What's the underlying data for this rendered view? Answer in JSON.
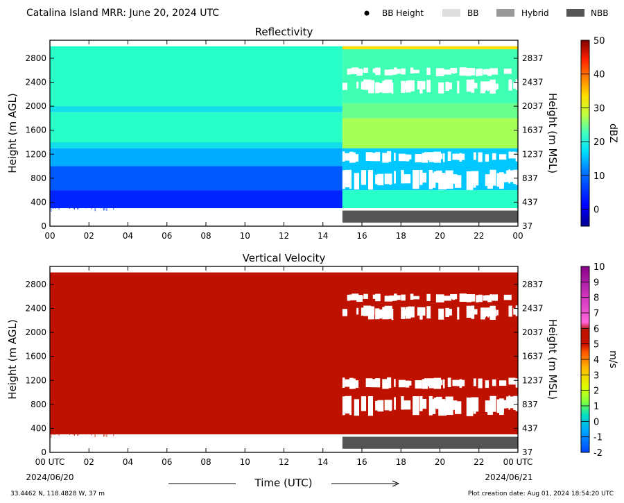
{
  "header": {
    "title": "Catalina Island MRR:  June 20, 2024 UTC",
    "legend": [
      {
        "label": "BB Height",
        "symbol": "dot",
        "color": "#000000"
      },
      {
        "label": "BB",
        "symbol": "box",
        "color": "#dddddd"
      },
      {
        "label": "Hybrid",
        "symbol": "box",
        "color": "#999999"
      },
      {
        "label": "NBB",
        "symbol": "box",
        "color": "#555555"
      }
    ]
  },
  "chart_data": [
    {
      "type": "heatmap",
      "title": "Reflectivity",
      "ylabel": "Height (m AGL)",
      "ylabel_right": "Height (m MSL)",
      "x_ticks": [
        "00",
        "02",
        "04",
        "06",
        "08",
        "10",
        "12",
        "14",
        "16",
        "18",
        "20",
        "22",
        "00"
      ],
      "xlim_hours": [
        0,
        24
      ],
      "y_ticks": [
        0,
        400,
        800,
        1200,
        1600,
        2000,
        2400,
        2800
      ],
      "y_ticks_right": [
        37,
        437,
        837,
        1237,
        1637,
        2037,
        2437,
        2837
      ],
      "ylim": [
        0,
        3100
      ],
      "data_bottom_m": 300,
      "data_top_m": 3000,
      "colorbar": {
        "label": "dBZ",
        "ticks": [
          0,
          10,
          20,
          30,
          40,
          50
        ],
        "range": [
          -5,
          50
        ]
      },
      "bright_band_type_bar": {
        "type": "NBB",
        "start_hour": 15,
        "end_hour": 24
      },
      "bands_before_15utc": [
        {
          "from_m": 300,
          "to_m": 600,
          "dbz": 3
        },
        {
          "from_m": 600,
          "to_m": 1000,
          "dbz": 6
        },
        {
          "from_m": 1000,
          "to_m": 1300,
          "dbz": 9
        },
        {
          "from_m": 1300,
          "to_m": 1400,
          "dbz": 12
        },
        {
          "from_m": 1400,
          "to_m": 1900,
          "dbz": 15
        },
        {
          "from_m": 1900,
          "to_m": 2000,
          "dbz": 12
        },
        {
          "from_m": 2000,
          "to_m": 3000,
          "dbz": 15
        }
      ],
      "bands_after_15utc": [
        {
          "from_m": 300,
          "to_m": 600,
          "dbz": 15
        },
        {
          "from_m": 600,
          "to_m": 1300,
          "dbz": 10
        },
        {
          "from_m": 1300,
          "to_m": 1800,
          "dbz": 21
        },
        {
          "from_m": 1800,
          "to_m": 2050,
          "dbz": 18
        },
        {
          "from_m": 2050,
          "to_m": 2950,
          "dbz": 16
        },
        {
          "from_m": 2950,
          "to_m": 3000,
          "dbz": 30
        }
      ]
    },
    {
      "type": "heatmap",
      "title": "Vertical Velocity",
      "ylabel": "Height (m AGL)",
      "ylabel_right": "Height (m MSL)",
      "xlabel": "Time (UTC)",
      "x_ticks": [
        "00 UTC",
        "02",
        "04",
        "06",
        "08",
        "10",
        "12",
        "14",
        "16",
        "18",
        "20",
        "22",
        "00 UTC"
      ],
      "x_dates": {
        "start": "2024/06/20",
        "end": "2024/06/21"
      },
      "xlim_hours": [
        0,
        24
      ],
      "y_ticks": [
        0,
        400,
        800,
        1200,
        1600,
        2000,
        2400,
        2800
      ],
      "y_ticks_right": [
        37,
        437,
        837,
        1237,
        1637,
        2037,
        2437,
        2837
      ],
      "ylim": [
        0,
        3100
      ],
      "data_bottom_m": 300,
      "data_top_m": 3000,
      "fill_value_ms": 6,
      "colorbar": {
        "label": "m/s",
        "ticks": [
          -2,
          -1,
          0,
          1,
          2,
          3,
          4,
          5,
          6,
          7,
          8,
          9,
          10
        ],
        "range": [
          -2,
          10
        ]
      },
      "bright_band_type_bar": {
        "type": "NBB",
        "start_hour": 15,
        "end_hour": 24
      }
    }
  ],
  "footer": {
    "location": "33.4462 N, 118.4828 W, 37 m",
    "creation": "Plot creation date: Aug 01, 2024 18:54:20 UTC"
  }
}
